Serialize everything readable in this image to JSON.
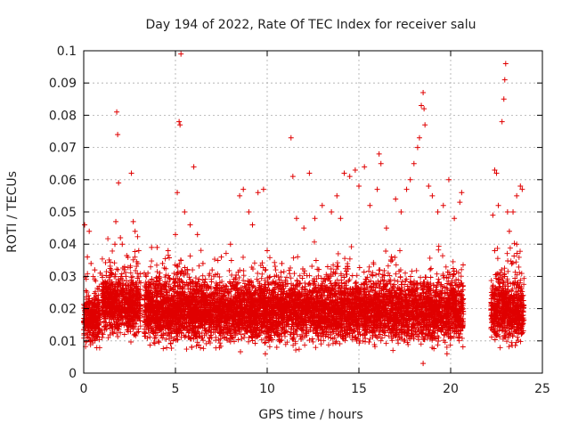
{
  "chart_data": {
    "type": "scatter",
    "title": "Day 194 of 2022, Rate Of TEC Index for receiver salu",
    "xlabel": "GPS time / hours",
    "ylabel": "ROTI / TECUs",
    "xlim": [
      0,
      25
    ],
    "ylim": [
      0,
      0.1
    ],
    "x_ticks": [
      "0",
      "5",
      "10",
      "15",
      "20",
      "25"
    ],
    "y_ticks": [
      "0",
      "0.01",
      "0.02",
      "0.03",
      "0.04",
      "0.05",
      "0.06",
      "0.07",
      "0.08",
      "0.09",
      "0.1"
    ],
    "grid": true,
    "marker": "+",
    "marker_color": "#e00000",
    "series": [
      {
        "points": [
          [
            0.05,
            0.046
          ],
          [
            0.2,
            0.036
          ],
          [
            0.3,
            0.044
          ],
          [
            0.4,
            0.034
          ],
          [
            0.6,
            0.032
          ],
          [
            0.9,
            0.031
          ],
          [
            1.1,
            0.028
          ],
          [
            1.5,
            0.032
          ],
          [
            1.7,
            0.04
          ],
          [
            1.75,
            0.047
          ],
          [
            1.8,
            0.081
          ],
          [
            1.85,
            0.074
          ],
          [
            1.9,
            0.059
          ],
          [
            2.0,
            0.042
          ],
          [
            2.1,
            0.04
          ],
          [
            2.3,
            0.03
          ],
          [
            2.6,
            0.062
          ],
          [
            2.7,
            0.047
          ],
          [
            2.8,
            0.044
          ],
          [
            3.0,
            0.038
          ],
          [
            3.1,
            0.028
          ],
          [
            3.5,
            0.031
          ],
          [
            3.7,
            0.039
          ],
          [
            4.0,
            0.039
          ],
          [
            4.3,
            0.034
          ],
          [
            4.6,
            0.038
          ],
          [
            5.0,
            0.043
          ],
          [
            5.1,
            0.056
          ],
          [
            5.2,
            0.078
          ],
          [
            5.25,
            0.077
          ],
          [
            5.3,
            0.099
          ],
          [
            5.5,
            0.05
          ],
          [
            5.8,
            0.046
          ],
          [
            6.0,
            0.064
          ],
          [
            6.2,
            0.043
          ],
          [
            6.5,
            0.034
          ],
          [
            7.0,
            0.032
          ],
          [
            7.5,
            0.036
          ],
          [
            8.0,
            0.04
          ],
          [
            8.5,
            0.055
          ],
          [
            8.7,
            0.057
          ],
          [
            9.0,
            0.05
          ],
          [
            9.2,
            0.046
          ],
          [
            9.5,
            0.056
          ],
          [
            9.8,
            0.057
          ],
          [
            10.0,
            0.038
          ],
          [
            10.4,
            0.03
          ],
          [
            10.8,
            0.034
          ],
          [
            11.3,
            0.073
          ],
          [
            11.4,
            0.061
          ],
          [
            11.6,
            0.048
          ],
          [
            12.0,
            0.045
          ],
          [
            12.3,
            0.062
          ],
          [
            12.6,
            0.048
          ],
          [
            13.0,
            0.052
          ],
          [
            13.5,
            0.05
          ],
          [
            13.8,
            0.055
          ],
          [
            14.0,
            0.048
          ],
          [
            14.2,
            0.062
          ],
          [
            14.5,
            0.061
          ],
          [
            14.8,
            0.063
          ],
          [
            15.0,
            0.058
          ],
          [
            15.3,
            0.064
          ],
          [
            15.6,
            0.052
          ],
          [
            16.0,
            0.057
          ],
          [
            16.1,
            0.068
          ],
          [
            16.2,
            0.065
          ],
          [
            16.5,
            0.045
          ],
          [
            17.0,
            0.054
          ],
          [
            17.3,
            0.05
          ],
          [
            17.6,
            0.057
          ],
          [
            17.8,
            0.06
          ],
          [
            18.0,
            0.065
          ],
          [
            18.2,
            0.07
          ],
          [
            18.3,
            0.073
          ],
          [
            18.4,
            0.083
          ],
          [
            18.5,
            0.087
          ],
          [
            18.55,
            0.082
          ],
          [
            18.6,
            0.077
          ],
          [
            18.8,
            0.058
          ],
          [
            19.0,
            0.055
          ],
          [
            19.3,
            0.05
          ],
          [
            19.6,
            0.052
          ],
          [
            19.9,
            0.06
          ],
          [
            20.2,
            0.048
          ],
          [
            20.5,
            0.053
          ],
          [
            20.6,
            0.056
          ],
          [
            18.5,
            0.003
          ],
          [
            19.8,
            0.006
          ],
          [
            9.9,
            0.006
          ],
          [
            22.3,
            0.049
          ],
          [
            22.4,
            0.063
          ],
          [
            22.5,
            0.062
          ],
          [
            22.6,
            0.052
          ],
          [
            22.8,
            0.078
          ],
          [
            22.9,
            0.085
          ],
          [
            22.95,
            0.091
          ],
          [
            23.0,
            0.096
          ],
          [
            23.1,
            0.05
          ],
          [
            23.4,
            0.05
          ],
          [
            23.6,
            0.055
          ],
          [
            23.8,
            0.058
          ],
          [
            23.9,
            0.057
          ],
          [
            22.4,
            0.038
          ],
          [
            23.2,
            0.044
          ],
          [
            23.6,
            0.04
          ]
        ]
      }
    ],
    "dense_band": {
      "note_segments": [
        {
          "x": [
            0.0,
            0.9
          ],
          "low": 0.006,
          "high": 0.028
        },
        {
          "x": [
            1.0,
            3.1
          ],
          "low": 0.009,
          "high": 0.033
        },
        {
          "x": [
            3.3,
            20.7
          ],
          "low": 0.006,
          "high": 0.032
        },
        {
          "x": [
            22.2,
            24.0
          ],
          "low": 0.006,
          "high": 0.033
        }
      ]
    }
  }
}
